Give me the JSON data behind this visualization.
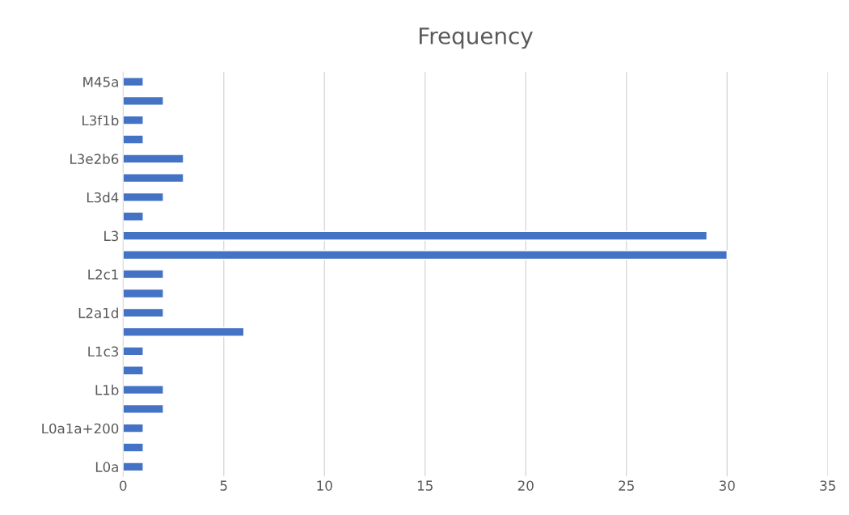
{
  "chart_data": {
    "type": "bar",
    "orientation": "horizontal",
    "title": "Frequency",
    "categories": [
      "M45a",
      null,
      "L3f1b",
      null,
      "L3e2b6",
      null,
      "L3d4",
      null,
      "L3",
      null,
      "L2c1",
      null,
      "L2a1d",
      null,
      "L1c3",
      null,
      "L1b",
      null,
      "L0a1a+200",
      null,
      "L0a"
    ],
    "values": [
      1,
      2,
      1,
      1,
      3,
      3,
      2,
      1,
      29,
      30,
      2,
      2,
      2,
      6,
      1,
      1,
      2,
      2,
      1,
      1,
      1
    ],
    "color": "#4472c4",
    "xlim": [
      0,
      35
    ],
    "xticks": [
      0,
      5,
      10,
      15,
      20,
      25,
      30,
      35
    ],
    "grid": "x"
  }
}
